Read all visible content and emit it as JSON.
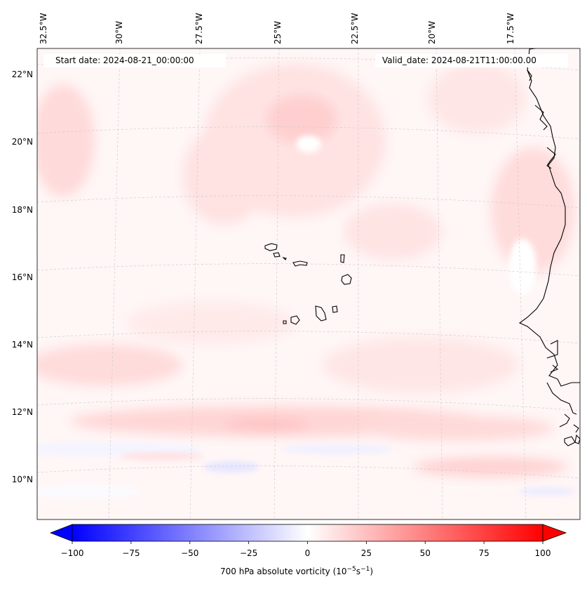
{
  "map": {
    "start_date": "Start date: 2024-08-21_00:00:00",
    "valid_date": "Valid_date: 2024-08-21T11:00:00.00",
    "lon_labels": [
      "32.5°W",
      "30°W",
      "27.5°W",
      "25°W",
      "22.5°W",
      "20°W",
      "17.5°W"
    ],
    "lat_labels": [
      "22°N",
      "20°N",
      "18°N",
      "16°N",
      "14°N",
      "12°N",
      "10°N"
    ],
    "field": "700 hPa absolute vorticity"
  },
  "colorbar": {
    "label": "700 hPa absolute vorticity (10",
    "label_exp1": "−5",
    "label_unit": "s",
    "label_exp2": "−1",
    "label_close": ")",
    "ticks": [
      "−100",
      "−75",
      "−50",
      "−25",
      "0",
      "25",
      "50",
      "75",
      "100"
    ],
    "min": -100,
    "max": 100,
    "colors": {
      "negative": "#0000ff",
      "zero": "#ffffff",
      "positive": "#ff0000"
    }
  }
}
